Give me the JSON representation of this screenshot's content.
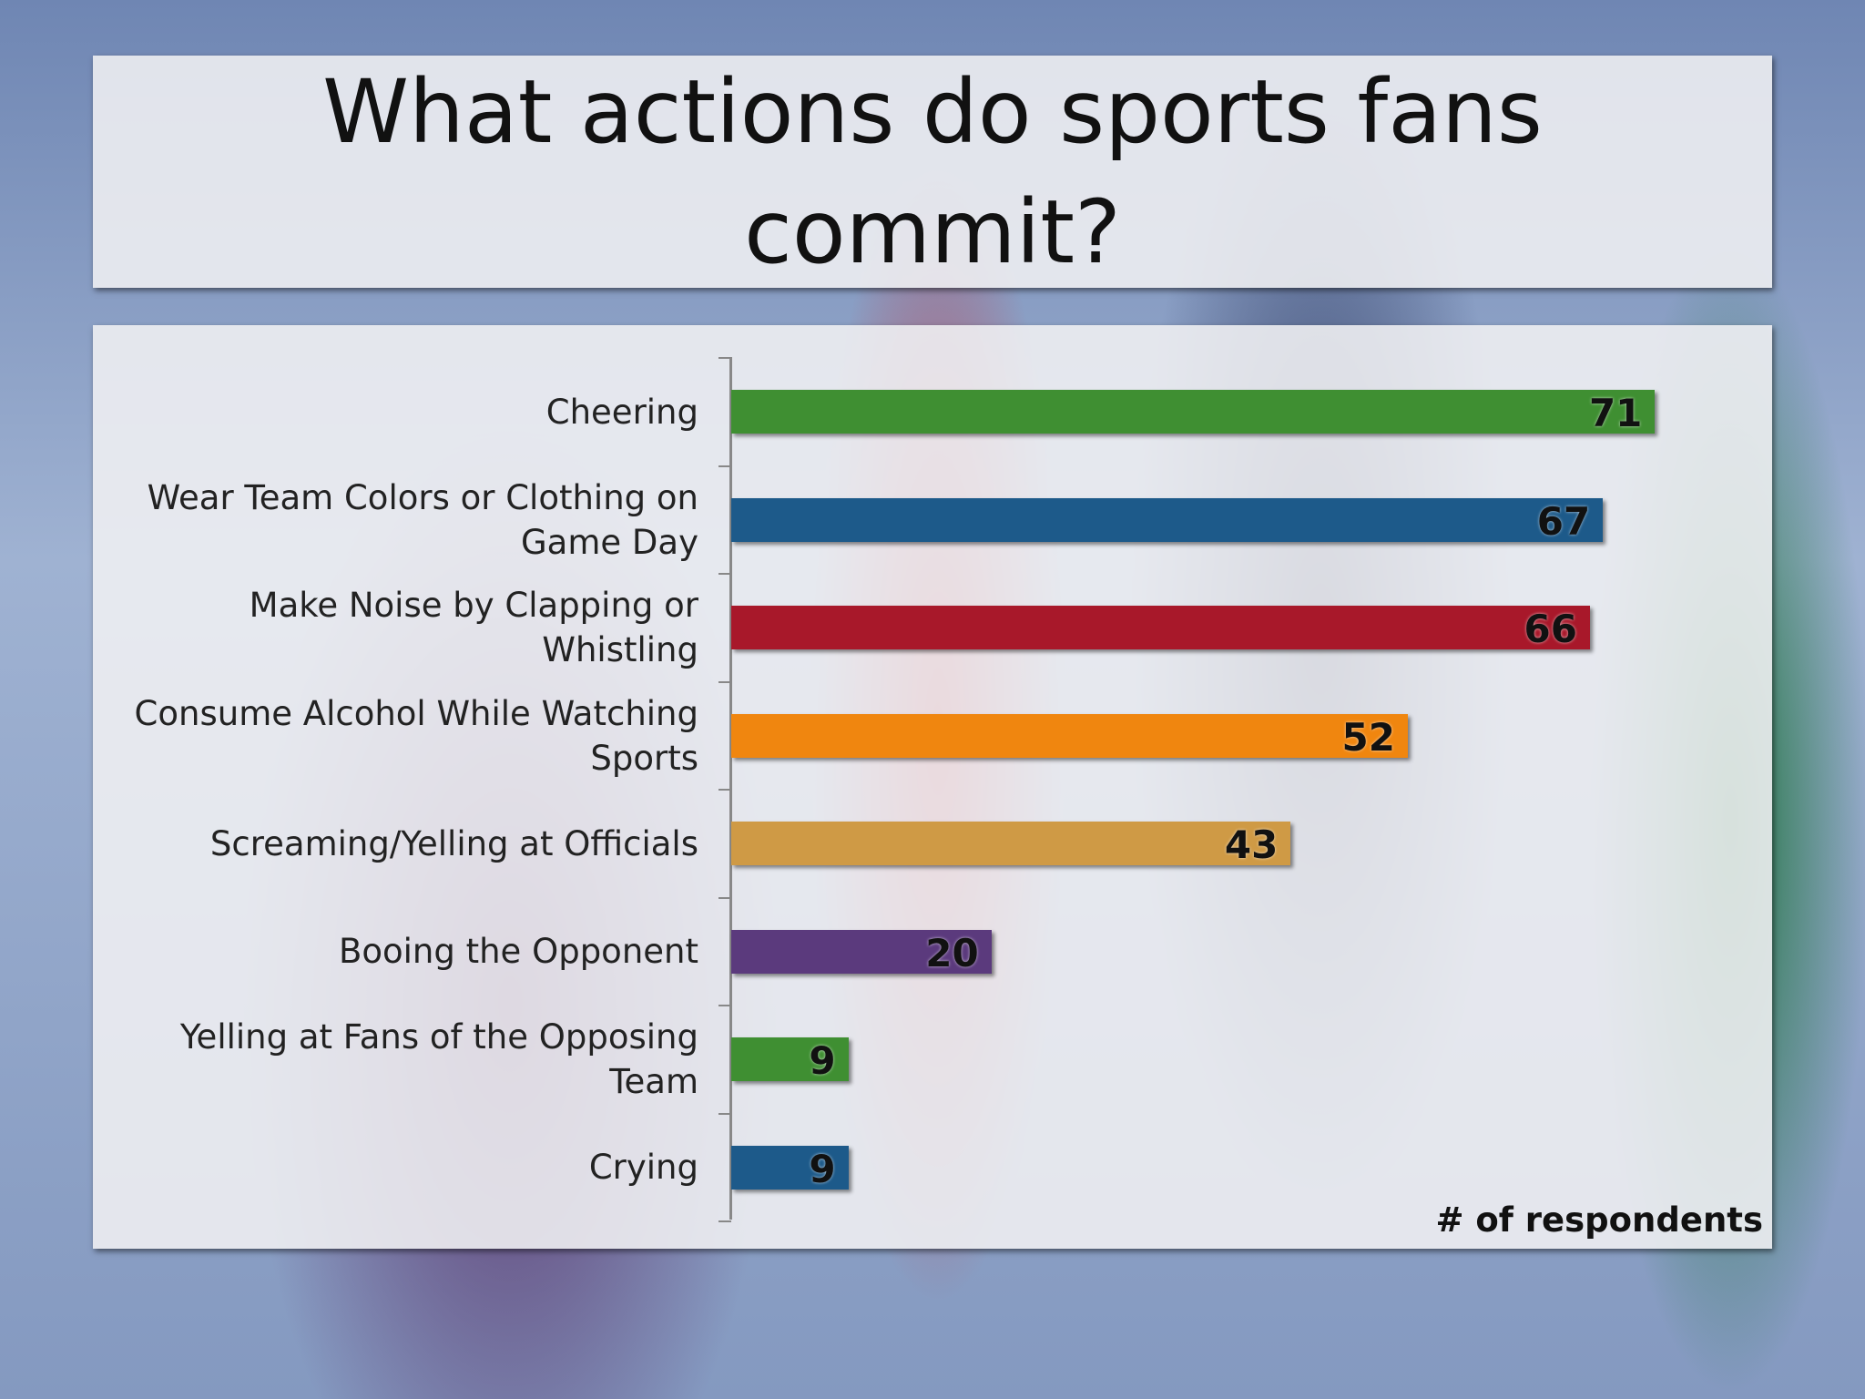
{
  "chart_data": {
    "type": "bar",
    "orientation": "horizontal",
    "title": "What actions do sports fans commit?",
    "xlabel": "# of respondents",
    "categories": [
      "Cheering",
      "Wear Team Colors or Clothing on Game Day",
      "Make Noise by Clapping or Whistling",
      "Consume Alcohol While Watching Sports",
      "Screaming/Yelling at Officials",
      "Booing the Opponent",
      "Yelling at Fans of the Opposing Team",
      "Crying"
    ],
    "values": [
      71,
      67,
      66,
      52,
      43,
      20,
      9,
      9
    ],
    "colors": [
      "#3f8f32",
      "#1d5a8a",
      "#a8182a",
      "#f0860f",
      "#cf9a45",
      "#5b3a7d",
      "#3f8f32",
      "#1d5a8a"
    ],
    "xlim": [
      0,
      80
    ]
  }
}
